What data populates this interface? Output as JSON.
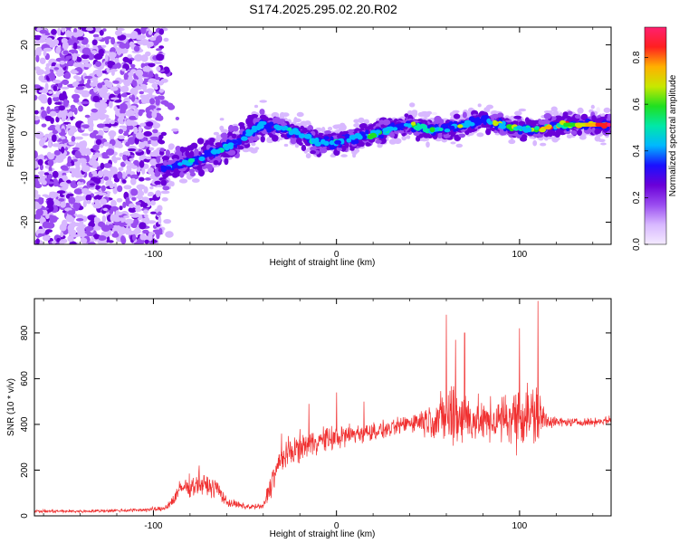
{
  "title": "S174.2025.295.02.20.R02",
  "chart_data": [
    {
      "type": "heatmap",
      "xlabel": "Height of straight line (km)",
      "ylabel": "Frequency (Hz)",
      "xlim": [
        -165,
        150
      ],
      "ylim": [
        -25,
        24
      ],
      "xticks": [
        -100,
        0,
        100
      ],
      "yticks": [
        -20,
        -10,
        0,
        10,
        20
      ],
      "colorbar": {
        "label": "Normalized spectral amplitude",
        "range": [
          0,
          0.93
        ],
        "ticks": [
          0.0,
          0.2,
          0.4,
          0.6,
          0.8
        ],
        "colors": [
          "#f4eaff",
          "#d8b8ff",
          "#9a4cf0",
          "#6a00d8",
          "#1a10ff",
          "#00b8ff",
          "#00e8a8",
          "#20e020",
          "#c8e800",
          "#ffb000",
          "#ff2020",
          "#ff2070"
        ]
      },
      "ridge": {
        "description": "frequency track of main signal (Hz) vs height (km)",
        "x": [
          -95,
          -85,
          -75,
          -65,
          -55,
          -45,
          -40,
          -30,
          -20,
          -10,
          0,
          10,
          20,
          30,
          40,
          50,
          60,
          70,
          80,
          90,
          100,
          110,
          120,
          130,
          145
        ],
        "y": [
          -8,
          -7,
          -6,
          -4,
          -2,
          1,
          2,
          1,
          0,
          -2,
          -2,
          -1,
          0,
          1,
          2,
          1,
          1,
          2,
          3,
          2,
          1,
          1,
          2,
          2,
          2
        ]
      }
    },
    {
      "type": "line",
      "xlabel": "Height of straight line (km)",
      "ylabel": "SNR (10 * v/v)",
      "xlim": [
        -165,
        150
      ],
      "ylim": [
        0,
        950
      ],
      "xticks": [
        -100,
        0,
        100
      ],
      "yticks": [
        0,
        200,
        400,
        600,
        800
      ],
      "color": "#f03030",
      "series": [
        {
          "name": "SNR",
          "x": [
            -165,
            -140,
            -110,
            -95,
            -90,
            -85,
            -75,
            -65,
            -60,
            -50,
            -40,
            -35,
            -30,
            -25,
            -20,
            -10,
            0,
            10,
            20,
            30,
            40,
            50,
            60,
            65,
            70,
            80,
            90,
            100,
            105,
            110,
            115,
            120,
            130,
            140,
            150
          ],
          "mean": [
            20,
            20,
            25,
            30,
            60,
            120,
            140,
            120,
            60,
            40,
            40,
            160,
            250,
            280,
            300,
            330,
            340,
            360,
            370,
            380,
            410,
            420,
            430,
            440,
            430,
            410,
            420,
            440,
            440,
            430,
            420,
            410,
            410,
            410,
            420
          ],
          "spread": [
            10,
            10,
            12,
            15,
            40,
            60,
            70,
            60,
            30,
            20,
            20,
            100,
            90,
            90,
            90,
            80,
            80,
            70,
            60,
            50,
            60,
            100,
            180,
            250,
            180,
            120,
            150,
            200,
            220,
            200,
            60,
            30,
            25,
            25,
            25
          ],
          "peaks": [
            [
              -75,
              220
            ],
            [
              -30,
              360
            ],
            [
              -15,
              490
            ],
            [
              0,
              540
            ],
            [
              15,
              500
            ],
            [
              60,
              880
            ],
            [
              65,
              770
            ],
            [
              70,
              800
            ],
            [
              100,
              820
            ],
            [
              110,
              940
            ]
          ]
        }
      ]
    }
  ]
}
